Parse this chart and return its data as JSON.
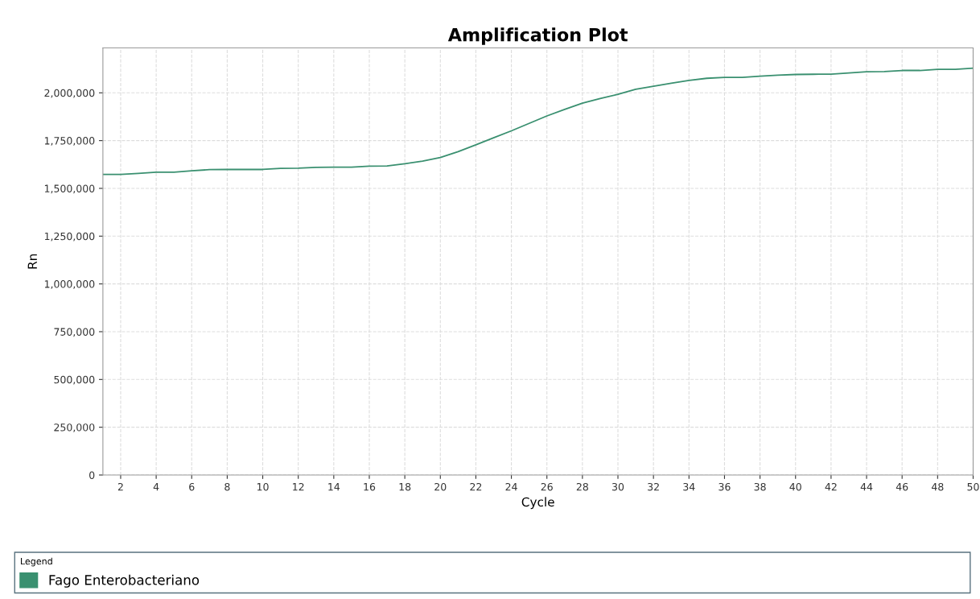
{
  "chart_data": {
    "type": "line",
    "title": "Amplification Plot",
    "xlabel": "Cycle",
    "ylabel": "Rn",
    "legend_title": "Legend",
    "legend": "bottom",
    "grid": true,
    "marker": "none",
    "line_style": "solid",
    "x": [
      1,
      2,
      3,
      4,
      5,
      6,
      7,
      8,
      9,
      10,
      11,
      12,
      13,
      14,
      15,
      16,
      17,
      18,
      19,
      20,
      21,
      22,
      23,
      24,
      25,
      26,
      27,
      28,
      29,
      30,
      31,
      32,
      33,
      34,
      35,
      36,
      37,
      38,
      39,
      40,
      41,
      42,
      43,
      44,
      45,
      46,
      47,
      48,
      49,
      50
    ],
    "series": [
      {
        "name": "Fago Enterobacteriano",
        "color": "#3a9070",
        "values": [
          1573000,
          1573000,
          1578000,
          1585000,
          1585000,
          1592000,
          1598000,
          1599000,
          1599000,
          1599000,
          1605000,
          1606000,
          1610000,
          1611000,
          1611000,
          1616000,
          1617000,
          1629000,
          1643000,
          1662000,
          1692000,
          1728000,
          1765000,
          1801000,
          1840000,
          1879000,
          1913000,
          1946000,
          1970000,
          1992000,
          2019000,
          2034000,
          2050000,
          2065000,
          2076000,
          2081000,
          2081000,
          2087000,
          2092000,
          2096000,
          2097000,
          2098000,
          2104000,
          2110000,
          2111000,
          2117000,
          2117000,
          2123000,
          2123000,
          2129000
        ]
      }
    ],
    "xlim": [
      1,
      50
    ],
    "xticks": [
      2,
      4,
      6,
      8,
      10,
      12,
      14,
      16,
      18,
      20,
      22,
      24,
      26,
      28,
      30,
      32,
      34,
      36,
      38,
      40,
      42,
      44,
      46,
      48,
      50
    ],
    "ylim": [
      0,
      2235000
    ],
    "yticks": [
      {
        "value": 0,
        "label": "0"
      },
      {
        "value": 250000,
        "label": "250,000"
      },
      {
        "value": 500000,
        "label": "500,000"
      },
      {
        "value": 750000,
        "label": "750,000"
      },
      {
        "value": 1000000,
        "label": "1,000,000"
      },
      {
        "value": 1250000,
        "label": "1,250,000"
      },
      {
        "value": 1500000,
        "label": "1,500,000"
      },
      {
        "value": 1750000,
        "label": "1,750,000"
      },
      {
        "value": 2000000,
        "label": "2,000,000"
      }
    ]
  }
}
